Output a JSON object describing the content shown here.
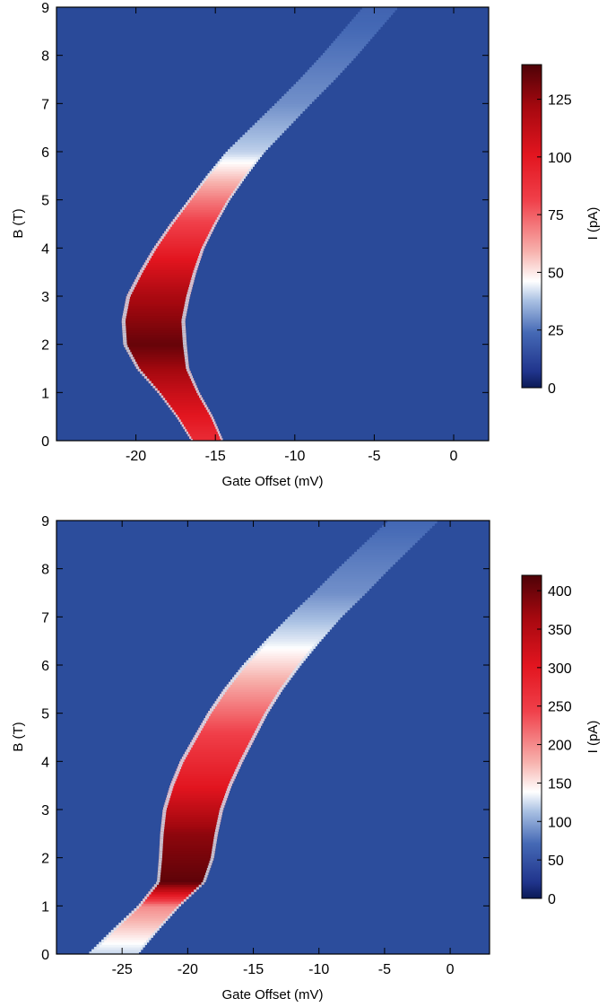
{
  "chart_data": [
    {
      "type": "heatmap",
      "xlabel": "Gate Offset (mV)",
      "ylabel": "B (T)",
      "xlim": [
        -25,
        2.2
      ],
      "ylim": [
        0,
        9
      ],
      "xticks": [
        -20,
        -15,
        -10,
        -5,
        0
      ],
      "yticks": [
        0,
        1,
        2,
        3,
        4,
        5,
        6,
        7,
        8,
        9
      ],
      "colorbar": {
        "label": "I (pA)",
        "range": [
          0,
          140
        ],
        "ticks": [
          0,
          25,
          50,
          75,
          100,
          125
        ]
      },
      "background_current": 5,
      "band": {
        "centerline": [
          {
            "b": 0.0,
            "x": -15.5
          },
          {
            "b": 0.5,
            "x": -16.3
          },
          {
            "b": 1.0,
            "x": -17.3
          },
          {
            "b": 1.5,
            "x": -18.3
          },
          {
            "b": 2.0,
            "x": -18.8
          },
          {
            "b": 2.5,
            "x": -18.9
          },
          {
            "b": 3.0,
            "x": -18.6
          },
          {
            "b": 3.5,
            "x": -18.0
          },
          {
            "b": 4.0,
            "x": -17.3
          },
          {
            "b": 4.5,
            "x": -16.4
          },
          {
            "b": 5.0,
            "x": -15.4
          },
          {
            "b": 5.5,
            "x": -14.3
          },
          {
            "b": 6.0,
            "x": -13.1
          },
          {
            "b": 6.5,
            "x": -11.6
          },
          {
            "b": 7.0,
            "x": -10.1
          },
          {
            "b": 7.5,
            "x": -8.6
          },
          {
            "b": 8.0,
            "x": -7.2
          },
          {
            "b": 8.5,
            "x": -5.9
          },
          {
            "b": 9.0,
            "x": -4.6
          }
        ],
        "half_width_mV": [
          {
            "b": 0.0,
            "w": 1.0
          },
          {
            "b": 1.0,
            "w": 1.3
          },
          {
            "b": 2.0,
            "w": 2.0
          },
          {
            "b": 3.0,
            "w": 2.0
          },
          {
            "b": 4.0,
            "w": 1.6
          },
          {
            "b": 5.0,
            "w": 1.3
          },
          {
            "b": 6.0,
            "w": 1.2
          },
          {
            "b": 7.0,
            "w": 1.1
          },
          {
            "b": 9.0,
            "w": 1.1
          }
        ],
        "current_pA": [
          {
            "b": 0.0,
            "i": 90
          },
          {
            "b": 1.0,
            "i": 110
          },
          {
            "b": 2.0,
            "i": 135
          },
          {
            "b": 3.0,
            "i": 120
          },
          {
            "b": 4.0,
            "i": 95
          },
          {
            "b": 5.0,
            "i": 70
          },
          {
            "b": 6.0,
            "i": 40
          },
          {
            "b": 7.0,
            "i": 30
          },
          {
            "b": 9.0,
            "i": 22
          }
        ]
      }
    },
    {
      "type": "heatmap",
      "xlabel": "Gate Offset (mV)",
      "ylabel": "B (T)",
      "xlim": [
        -30,
        3
      ],
      "ylim": [
        0,
        9
      ],
      "xticks": [
        -25,
        -20,
        -15,
        -10,
        -5,
        0
      ],
      "yticks": [
        0,
        1,
        2,
        3,
        4,
        5,
        6,
        7,
        8,
        9
      ],
      "colorbar": {
        "label": "I (pA)",
        "range": [
          0,
          420
        ],
        "ticks": [
          0,
          50,
          100,
          150,
          200,
          250,
          300,
          350,
          400
        ]
      },
      "background_current": 15,
      "band": {
        "centerline": [
          {
            "b": 0.0,
            "x": -25.7
          },
          {
            "b": 0.5,
            "x": -24.0
          },
          {
            "b": 1.0,
            "x": -22.2
          },
          {
            "b": 1.5,
            "x": -20.5
          },
          {
            "b": 2.0,
            "x": -20.1
          },
          {
            "b": 2.5,
            "x": -19.9
          },
          {
            "b": 3.0,
            "x": -19.6
          },
          {
            "b": 3.5,
            "x": -19.0
          },
          {
            "b": 4.0,
            "x": -18.2
          },
          {
            "b": 4.5,
            "x": -17.2
          },
          {
            "b": 5.0,
            "x": -16.2
          },
          {
            "b": 5.5,
            "x": -15.0
          },
          {
            "b": 6.0,
            "x": -13.6
          },
          {
            "b": 6.5,
            "x": -12.0
          },
          {
            "b": 7.0,
            "x": -10.3
          },
          {
            "b": 7.5,
            "x": -8.4
          },
          {
            "b": 8.0,
            "x": -6.6
          },
          {
            "b": 8.5,
            "x": -4.7
          },
          {
            "b": 9.0,
            "x": -2.8
          }
        ],
        "half_width_mV": [
          {
            "b": 0.0,
            "w": 1.9
          },
          {
            "b": 1.0,
            "w": 1.6
          },
          {
            "b": 2.0,
            "w": 2.1
          },
          {
            "b": 3.0,
            "w": 2.3
          },
          {
            "b": 4.0,
            "w": 2.4
          },
          {
            "b": 5.0,
            "w": 2.3
          },
          {
            "b": 6.0,
            "w": 2.2
          },
          {
            "b": 7.0,
            "w": 2.0
          },
          {
            "b": 9.0,
            "w": 1.9
          }
        ],
        "current_pA": [
          {
            "b": 0.0,
            "i": 120
          },
          {
            "b": 1.0,
            "i": 200
          },
          {
            "b": 1.5,
            "i": 410
          },
          {
            "b": 2.5,
            "i": 380
          },
          {
            "b": 3.5,
            "i": 300
          },
          {
            "b": 4.5,
            "i": 250
          },
          {
            "b": 5.5,
            "i": 190
          },
          {
            "b": 6.5,
            "i": 130
          },
          {
            "b": 7.5,
            "i": 90
          },
          {
            "b": 9.0,
            "i": 70
          }
        ]
      }
    }
  ]
}
